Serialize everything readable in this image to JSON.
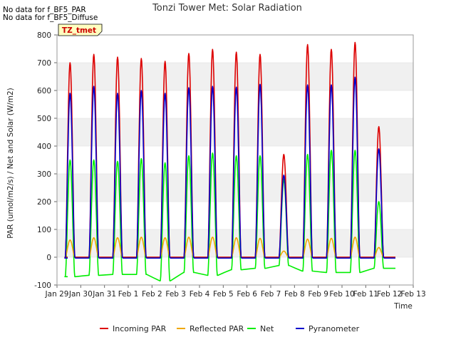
{
  "notes": [
    "No data for f_BF5_PAR",
    "No data for f_BF5_Diffuse"
  ],
  "chart_data": {
    "type": "line",
    "title": "Tonzi Tower Met: Solar Radiation",
    "xlabel": "Time",
    "ylabel": "PAR (umol/m2/s) / Net and Solar (W/m2)",
    "annotation": "TZ_tmet",
    "ylim": [
      -100,
      800
    ],
    "yticks": [
      -100,
      0,
      100,
      200,
      300,
      400,
      500,
      600,
      700,
      800
    ],
    "xlim": [
      0,
      15
    ],
    "xticks": [
      {
        "label": "Jan 29",
        "value": 0
      },
      {
        "label": "Jan 30",
        "value": 1
      },
      {
        "label": "Jan 31",
        "value": 2
      },
      {
        "label": "Feb 1",
        "value": 3
      },
      {
        "label": "Feb 2",
        "value": 4
      },
      {
        "label": "Feb 3",
        "value": 5
      },
      {
        "label": "Feb 4",
        "value": 6
      },
      {
        "label": "Feb 5",
        "value": 7
      },
      {
        "label": "Feb 6",
        "value": 8
      },
      {
        "label": "Feb 7",
        "value": 9
      },
      {
        "label": "Feb 8",
        "value": 10
      },
      {
        "label": "Feb 9",
        "value": 11
      },
      {
        "label": "Feb 10",
        "value": 12
      },
      {
        "label": "Feb 11",
        "value": 13
      },
      {
        "label": "Feb 12",
        "value": 14
      },
      {
        "label": "Feb 13",
        "value": 15
      }
    ],
    "grid": "horizontal bands",
    "legend_position": "bottom",
    "days": [
      {
        "day": "Jan 29",
        "start": 0.35,
        "end": 0.75,
        "incoming": 700,
        "reflected": 62,
        "net": 350,
        "net_night": -70,
        "pyranometer": 590
      },
      {
        "day": "Jan 30",
        "start": 1.35,
        "end": 1.75,
        "incoming": 730,
        "reflected": 70,
        "net": 350,
        "net_night": -65,
        "pyranometer": 615
      },
      {
        "day": "Jan 31",
        "start": 2.35,
        "end": 2.75,
        "incoming": 720,
        "reflected": 70,
        "net": 345,
        "net_night": -62,
        "pyranometer": 590
      },
      {
        "day": "Feb 1",
        "start": 3.35,
        "end": 3.75,
        "incoming": 715,
        "reflected": 72,
        "net": 355,
        "net_night": -62,
        "pyranometer": 600
      },
      {
        "day": "Feb 2",
        "start": 4.35,
        "end": 4.75,
        "incoming": 705,
        "reflected": 70,
        "net": 340,
        "net_night": -85,
        "pyranometer": 590
      },
      {
        "day": "Feb 3",
        "start": 5.35,
        "end": 5.75,
        "incoming": 733,
        "reflected": 72,
        "net": 365,
        "net_night": -55,
        "pyranometer": 610
      },
      {
        "day": "Feb 4",
        "start": 6.35,
        "end": 6.75,
        "incoming": 748,
        "reflected": 72,
        "net": 375,
        "net_night": -65,
        "pyranometer": 615
      },
      {
        "day": "Feb 5",
        "start": 7.35,
        "end": 7.75,
        "incoming": 738,
        "reflected": 70,
        "net": 365,
        "net_night": -45,
        "pyranometer": 612
      },
      {
        "day": "Feb 6",
        "start": 8.35,
        "end": 8.75,
        "incoming": 730,
        "reflected": 68,
        "net": 365,
        "net_night": -40,
        "pyranometer": 622
      },
      {
        "day": "Feb 7",
        "start": 9.35,
        "end": 9.75,
        "incoming": 370,
        "reflected": 22,
        "net": 280,
        "net_night": -30,
        "pyranometer": 295
      },
      {
        "day": "Feb 8",
        "start": 10.35,
        "end": 10.75,
        "incoming": 765,
        "reflected": 65,
        "net": 370,
        "net_night": -50,
        "pyranometer": 620
      },
      {
        "day": "Feb 9",
        "start": 11.35,
        "end": 11.75,
        "incoming": 748,
        "reflected": 68,
        "net": 385,
        "net_night": -55,
        "pyranometer": 620
      },
      {
        "day": "Feb 10",
        "start": 12.35,
        "end": 12.75,
        "incoming": 773,
        "reflected": 72,
        "net": 385,
        "net_night": -55,
        "pyranometer": 648
      },
      {
        "day": "Feb 11",
        "start": 13.35,
        "end": 13.75,
        "incoming": 470,
        "reflected": 35,
        "net": 200,
        "net_night": -40,
        "pyranometer": 390
      }
    ],
    "series": [
      {
        "name": "Incoming PAR",
        "key": "incoming",
        "color": "#dd0000",
        "night": 0
      },
      {
        "name": "Reflected PAR",
        "key": "reflected",
        "color": "#f0a800",
        "night": 0
      },
      {
        "name": "Net",
        "key": "net",
        "color": "#00ee00",
        "night": null
      },
      {
        "name": "Pyranometer",
        "key": "pyranometer",
        "color": "#0000cc",
        "night": -3
      }
    ],
    "x_end": 14.25
  }
}
